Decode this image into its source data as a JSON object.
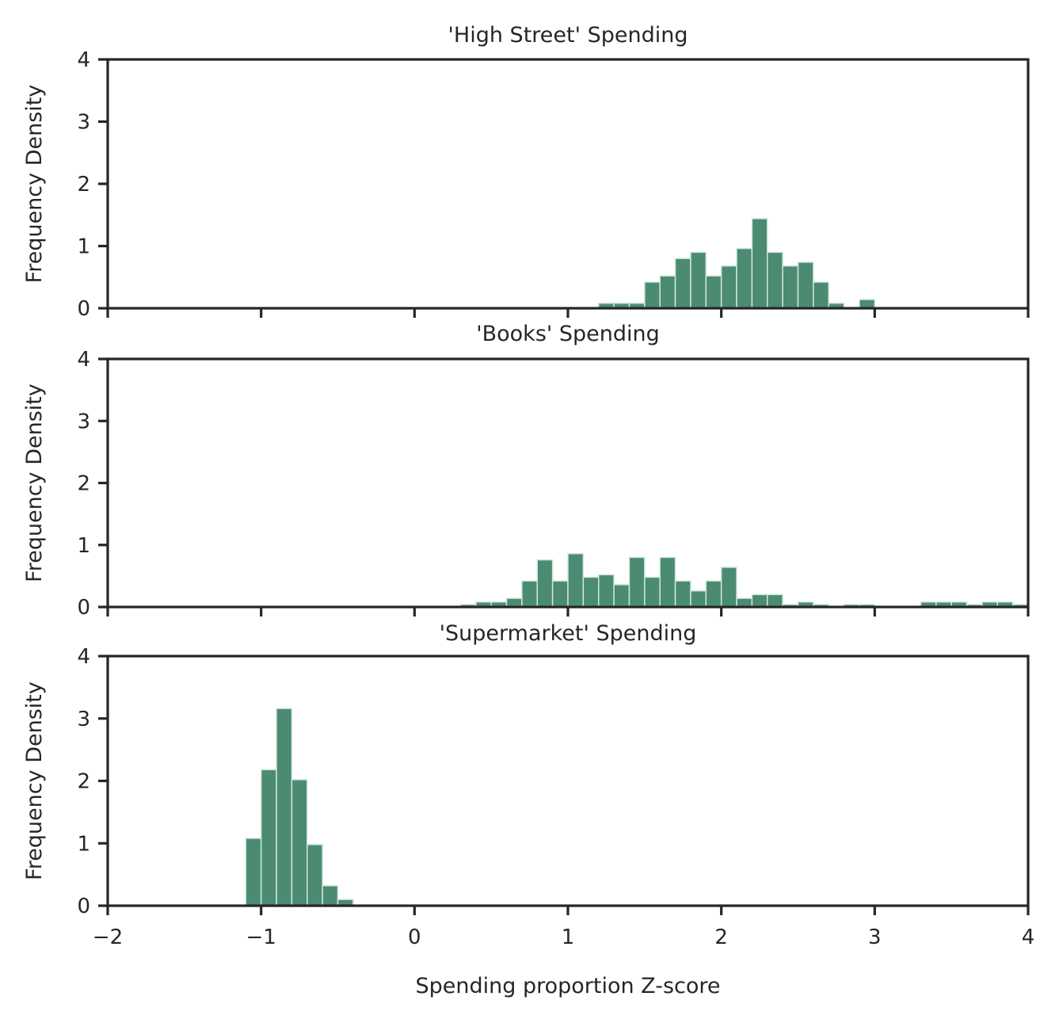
{
  "chart_data": [
    {
      "type": "bar",
      "title": "'High Street' Spending",
      "ylabel": "Frequency Density",
      "xlim": [
        -2,
        4
      ],
      "ylim": [
        0,
        4
      ],
      "yticks": [
        "0",
        "1",
        "2",
        "3",
        "4"
      ],
      "bin_width": 0.1,
      "bin_starts": [
        1.2,
        1.3,
        1.4,
        1.5,
        1.6,
        1.7,
        1.8,
        1.9,
        2.0,
        2.1,
        2.2,
        2.3,
        2.4,
        2.5,
        2.6,
        2.7,
        2.9
      ],
      "values": [
        0.08,
        0.08,
        0.08,
        0.42,
        0.52,
        0.8,
        0.9,
        0.52,
        0.68,
        0.96,
        1.44,
        0.9,
        0.68,
        0.74,
        0.42,
        0.08,
        0.14
      ]
    },
    {
      "type": "bar",
      "title": "'Books' Spending",
      "ylabel": "Frequency Density",
      "xlim": [
        -2,
        4
      ],
      "ylim": [
        0,
        4
      ],
      "yticks": [
        "0",
        "1",
        "2",
        "3",
        "4"
      ],
      "bin_width": 0.1,
      "bin_starts": [
        0.3,
        0.4,
        0.5,
        0.6,
        0.7,
        0.8,
        0.9,
        1.0,
        1.1,
        1.2,
        1.3,
        1.4,
        1.5,
        1.6,
        1.7,
        1.8,
        1.9,
        2.0,
        2.1,
        2.2,
        2.3,
        2.4,
        2.5,
        2.6,
        2.8,
        2.9,
        3.3,
        3.4,
        3.5,
        3.6,
        3.7,
        3.8,
        3.9
      ],
      "values": [
        0.04,
        0.08,
        0.08,
        0.14,
        0.42,
        0.76,
        0.42,
        0.86,
        0.48,
        0.52,
        0.36,
        0.8,
        0.48,
        0.8,
        0.42,
        0.26,
        0.42,
        0.64,
        0.14,
        0.2,
        0.2,
        0.04,
        0.08,
        0.04,
        0.04,
        0.04,
        0.08,
        0.08,
        0.08,
        0.04,
        0.08,
        0.08,
        0.04
      ]
    },
    {
      "type": "bar",
      "title": "'Supermarket' Spending",
      "ylabel": "Frequency Density",
      "xlabel": "Spending proportion Z-score",
      "xlim": [
        -2,
        4
      ],
      "ylim": [
        0,
        4
      ],
      "yticks": [
        "0",
        "1",
        "2",
        "3",
        "4"
      ],
      "xticks": [
        "−2",
        "−1",
        "0",
        "1",
        "2",
        "3",
        "4"
      ],
      "bin_width": 0.1,
      "bin_starts": [
        -1.1,
        -1.0,
        -0.9,
        -0.8,
        -0.7,
        -0.6,
        -0.5
      ],
      "values": [
        1.08,
        2.18,
        3.16,
        2.02,
        0.98,
        0.32,
        0.1
      ]
    }
  ],
  "colors": {
    "bar_fill": "#4a8b72",
    "axis": "#262626"
  }
}
